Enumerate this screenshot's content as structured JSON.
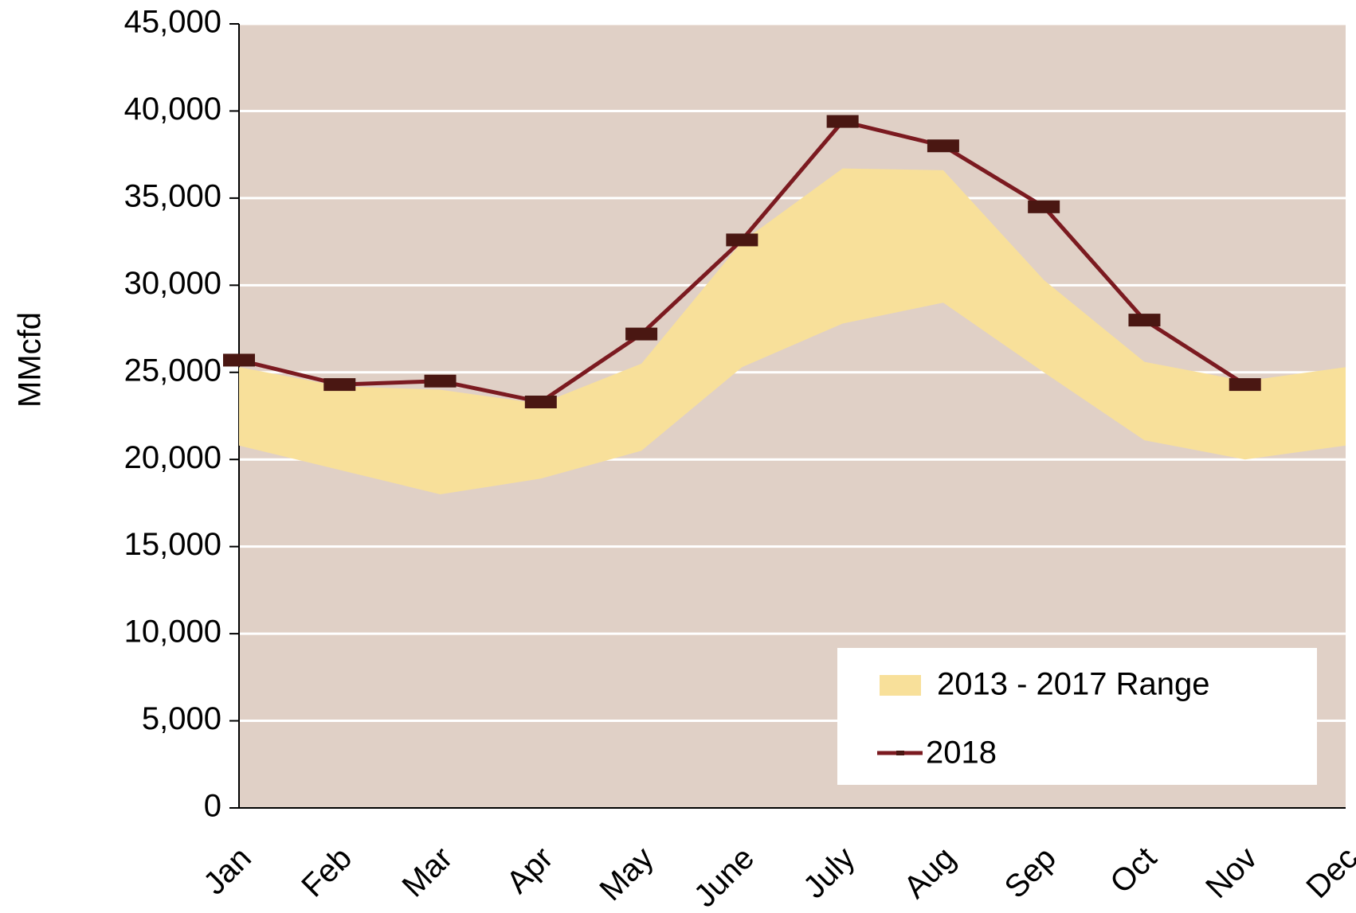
{
  "chart_data": {
    "type": "range-line",
    "y_label": "MMcfd",
    "categories": [
      "Jan",
      "Feb",
      "Mar",
      "Apr",
      "May",
      "June",
      "July",
      "Aug",
      "Sep",
      "Oct",
      "Nov",
      "Dec"
    ],
    "series": [
      {
        "name": "2013 - 2017 Range",
        "color": "#f8e09a",
        "lower": [
          20800,
          19400,
          18000,
          18900,
          20500,
          25300,
          27800,
          29000,
          25000,
          21100,
          20000,
          20800
        ],
        "upper": [
          25300,
          24200,
          24000,
          23200,
          25500,
          32500,
          36700,
          36600,
          30300,
          25600,
          24500,
          25300
        ]
      },
      {
        "name": "2018",
        "color": "#7b1a20",
        "marker_color": "#4a1712",
        "values": [
          25700,
          24300,
          24500,
          23300,
          27200,
          32600,
          39400,
          38000,
          34500,
          28000,
          24300,
          null
        ]
      }
    ],
    "ylim": [
      0,
      45000
    ],
    "yticks": [
      0,
      {
        "value": 5000,
        "label": "5,000"
      },
      {
        "value": 10000,
        "label": "10,000"
      },
      {
        "value": 15000,
        "label": "15,000"
      },
      {
        "value": 20000,
        "label": "20,000"
      },
      {
        "value": 25000,
        "label": "25,000"
      },
      {
        "value": 30000,
        "label": "30,000"
      },
      {
        "value": 35000,
        "label": "35,000"
      },
      {
        "value": 40000,
        "label": "40,000"
      },
      {
        "value": 45000,
        "label": "45,000"
      }
    ],
    "grid": true,
    "legend": "lower-right"
  }
}
